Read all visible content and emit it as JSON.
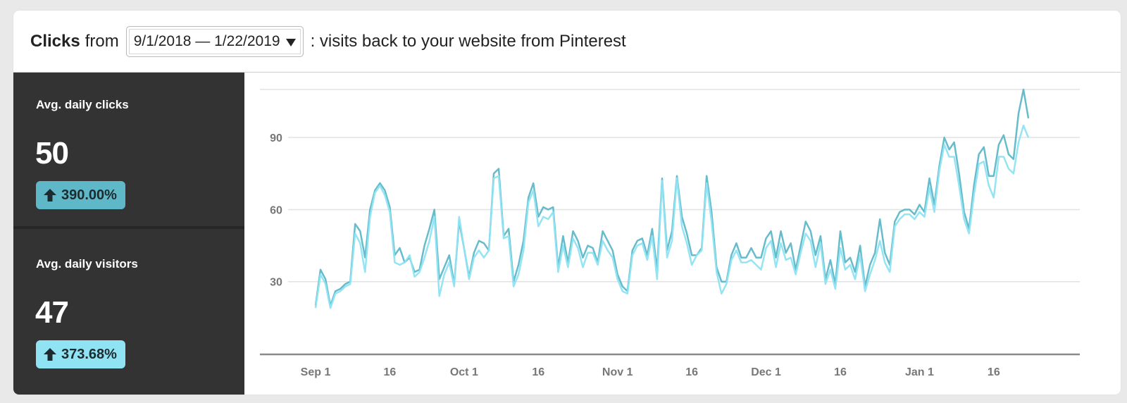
{
  "header": {
    "metric": "Clicks",
    "from": "from",
    "date_range": "9/1/2018 — 1/22/2019",
    "suffix": ": visits back to your website from Pinterest"
  },
  "stats": [
    {
      "label": "Avg. daily clicks",
      "value": "50",
      "change": "390.00%",
      "badge_color": "#5fb8c8"
    },
    {
      "label": "Avg. daily visitors",
      "value": "47",
      "change": "373.68%",
      "badge_color": "#8fe3f2"
    }
  ],
  "icons": {
    "badge_icon": "arrow-up-icon",
    "dropdown_icon": "caret-down-icon"
  },
  "chart_data": {
    "type": "line",
    "title": "",
    "xlabel": "",
    "ylabel": "",
    "x_start": "2018-09-01",
    "x_end": "2019-01-22",
    "ylim": [
      0,
      110
    ],
    "y_ticks": [
      30,
      60,
      90
    ],
    "x_ticks": [
      {
        "label": "Sep 1",
        "date": "2018-09-01"
      },
      {
        "label": "16",
        "date": "2018-09-16"
      },
      {
        "label": "Oct 1",
        "date": "2018-10-01"
      },
      {
        "label": "16",
        "date": "2018-10-16"
      },
      {
        "label": "Nov 1",
        "date": "2018-11-01"
      },
      {
        "label": "16",
        "date": "2018-11-16"
      },
      {
        "label": "Dec 1",
        "date": "2018-12-01"
      },
      {
        "label": "16",
        "date": "2018-12-16"
      },
      {
        "label": "Jan 1",
        "date": "2019-01-01"
      },
      {
        "label": "16",
        "date": "2019-01-16"
      }
    ],
    "grid": true,
    "series": [
      {
        "color": "#5fb8c8",
        "values": [
          20,
          35,
          31,
          20,
          26,
          27,
          29,
          30,
          54,
          51,
          40,
          60,
          68,
          71,
          68,
          61,
          41,
          44,
          38,
          40,
          34,
          35,
          45,
          52,
          60,
          31,
          36,
          41,
          29,
          55,
          44,
          32,
          42,
          47,
          46,
          43,
          75,
          77,
          49,
          52,
          30,
          37,
          47,
          65,
          71,
          57,
          61,
          60,
          61,
          36,
          49,
          38,
          51,
          47,
          40,
          45,
          44,
          38,
          51,
          47,
          43,
          33,
          28,
          26,
          43,
          47,
          48,
          41,
          52,
          35,
          73,
          43,
          51,
          74,
          57,
          50,
          41,
          41,
          44,
          74,
          59,
          36,
          30,
          30,
          41,
          46,
          40,
          40,
          44,
          40,
          40,
          48,
          51,
          40,
          51,
          42,
          46,
          35,
          45,
          55,
          51,
          41,
          49,
          31,
          39,
          29,
          51,
          38,
          40,
          34,
          45,
          28,
          37,
          42,
          56,
          42,
          37,
          55,
          59,
          60,
          60,
          58,
          62,
          59,
          73,
          62,
          78,
          90,
          85,
          88,
          75,
          59,
          52,
          70,
          83,
          86,
          74,
          74,
          87,
          91,
          83,
          81,
          100,
          110,
          98
        ],
        "name": ""
      },
      {
        "color": "#8fe3f2",
        "values": [
          19,
          33,
          29,
          19,
          25,
          26,
          28,
          29,
          50,
          46,
          34,
          57,
          67,
          70,
          66,
          59,
          38,
          37,
          38,
          41,
          32,
          34,
          40,
          47,
          57,
          24,
          33,
          38,
          28,
          57,
          44,
          31,
          40,
          43,
          40,
          43,
          73,
          74,
          48,
          49,
          28,
          33,
          43,
          63,
          68,
          53,
          57,
          56,
          59,
          34,
          45,
          36,
          48,
          44,
          36,
          42,
          42,
          37,
          47,
          43,
          40,
          31,
          26,
          25,
          41,
          45,
          46,
          39,
          49,
          31,
          72,
          40,
          47,
          73,
          53,
          46,
          37,
          41,
          43,
          71,
          55,
          34,
          25,
          29,
          39,
          43,
          38,
          38,
          39,
          37,
          35,
          44,
          47,
          36,
          46,
          39,
          40,
          33,
          42,
          50,
          47,
          36,
          46,
          29,
          35,
          27,
          44,
          35,
          37,
          31,
          41,
          26,
          33,
          39,
          47,
          38,
          34,
          53,
          56,
          58,
          58,
          56,
          59,
          57,
          69,
          59,
          76,
          87,
          82,
          82,
          70,
          56,
          50,
          66,
          79,
          80,
          70,
          65,
          82,
          82,
          77,
          75,
          88,
          95,
          90
        ],
        "name": ""
      }
    ]
  }
}
